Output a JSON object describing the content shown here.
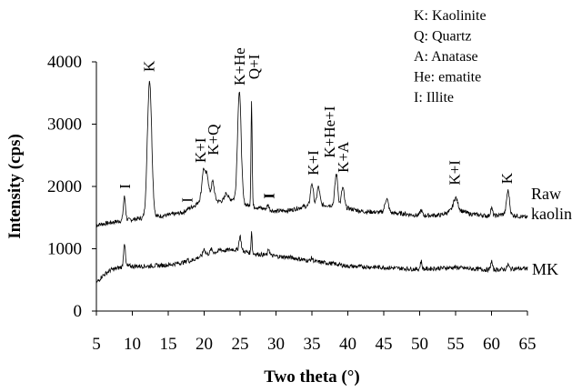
{
  "chart_data": {
    "type": "line",
    "title": "",
    "xlabel": "Two theta (°)",
    "ylabel": "Intensity (cps)",
    "xlim": [
      5,
      65
    ],
    "ylim": [
      0,
      4000
    ],
    "x_ticks": [
      5,
      10,
      15,
      20,
      25,
      30,
      35,
      40,
      45,
      50,
      55,
      60,
      65
    ],
    "y_ticks": [
      0,
      1000,
      2000,
      3000,
      4000
    ],
    "grid": false,
    "legend": {
      "placement": "top-right",
      "entries": [
        "K: Kaolinite",
        "Q: Quartz",
        "A: Anatase",
        "He: ematite",
        "I: Illite"
      ]
    },
    "series": [
      {
        "name": "Raw kaolin",
        "label_lines": [
          "Raw",
          "kaolin"
        ],
        "baseline": [
          [
            5,
            1380
          ],
          [
            8,
            1440
          ],
          [
            10,
            1470
          ],
          [
            12,
            1500
          ],
          [
            15,
            1540
          ],
          [
            17,
            1580
          ],
          [
            19,
            1720
          ],
          [
            20,
            1900
          ],
          [
            22,
            1760
          ],
          [
            24,
            1800
          ],
          [
            26,
            1700
          ],
          [
            28,
            1650
          ],
          [
            30,
            1600
          ],
          [
            32,
            1620
          ],
          [
            34,
            1680
          ],
          [
            36,
            1700
          ],
          [
            38,
            1700
          ],
          [
            40,
            1650
          ],
          [
            42,
            1600
          ],
          [
            45,
            1580
          ],
          [
            48,
            1560
          ],
          [
            50,
            1530
          ],
          [
            53,
            1540
          ],
          [
            55,
            1640
          ],
          [
            57,
            1560
          ],
          [
            60,
            1520
          ],
          [
            62,
            1560
          ],
          [
            65,
            1500
          ]
        ],
        "peaks": [
          [
            8.9,
            1830,
            0.15
          ],
          [
            12.4,
            3700,
            0.3
          ],
          [
            17.7,
            1640,
            0.15
          ],
          [
            19.9,
            2270,
            0.2
          ],
          [
            20.4,
            2200,
            0.2
          ],
          [
            21.2,
            2080,
            0.2
          ],
          [
            23.1,
            1900,
            0.2
          ],
          [
            24.9,
            3530,
            0.25
          ],
          [
            26.6,
            3400,
            0.08
          ],
          [
            28.9,
            1700,
            0.15
          ],
          [
            35.0,
            2050,
            0.2
          ],
          [
            35.9,
            1990,
            0.2
          ],
          [
            38.4,
            2200,
            0.2
          ],
          [
            39.3,
            1980,
            0.2
          ],
          [
            45.4,
            1800,
            0.25
          ],
          [
            50.2,
            1620,
            0.15
          ],
          [
            55.0,
            1820,
            0.3
          ],
          [
            60.0,
            1650,
            0.15
          ],
          [
            62.3,
            1930,
            0.2
          ]
        ]
      },
      {
        "name": "MK",
        "label_lines": [
          "MK"
        ],
        "baseline": [
          [
            5,
            450
          ],
          [
            5.8,
            560
          ],
          [
            7,
            660
          ],
          [
            9,
            720
          ],
          [
            12,
            720
          ],
          [
            15,
            740
          ],
          [
            18,
            800
          ],
          [
            20,
            900
          ],
          [
            22,
            960
          ],
          [
            24,
            990
          ],
          [
            25,
            970
          ],
          [
            27,
            920
          ],
          [
            30,
            880
          ],
          [
            32,
            860
          ],
          [
            35,
            800
          ],
          [
            38,
            760
          ],
          [
            40,
            720
          ],
          [
            45,
            700
          ],
          [
            48,
            680
          ],
          [
            50,
            670
          ],
          [
            53,
            690
          ],
          [
            55,
            700
          ],
          [
            57,
            680
          ],
          [
            60,
            660
          ],
          [
            63,
            680
          ],
          [
            65,
            680
          ]
        ],
        "peaks": [
          [
            8.9,
            1100,
            0.12
          ],
          [
            17.7,
            830,
            0.12
          ],
          [
            20.0,
            1000,
            0.15
          ],
          [
            21.0,
            990,
            0.15
          ],
          [
            22.3,
            990,
            0.15
          ],
          [
            25.0,
            1200,
            0.15
          ],
          [
            26.6,
            1300,
            0.07
          ],
          [
            29.0,
            1000,
            0.12
          ],
          [
            35.0,
            850,
            0.15
          ],
          [
            50.2,
            800,
            0.12
          ],
          [
            60.0,
            800,
            0.12
          ],
          [
            62.3,
            750,
            0.12
          ]
        ]
      }
    ],
    "annotations": [
      {
        "text": "I",
        "x": 8.9,
        "y": 1960,
        "bold": false
      },
      {
        "text": "K",
        "x": 12.3,
        "y": 3840,
        "bold": false
      },
      {
        "text": "I",
        "x": 17.6,
        "y": 1740,
        "bold": false
      },
      {
        "text": "K+I",
        "x": 19.4,
        "y": 2380,
        "bold": false
      },
      {
        "text": "K+Q",
        "x": 21.2,
        "y": 2500,
        "bold": false
      },
      {
        "text": "K+He",
        "x": 24.9,
        "y": 3620,
        "bold": false
      },
      {
        "text": "Q+I",
        "x": 26.9,
        "y": 3720,
        "bold": false
      },
      {
        "text": "I",
        "x": 29.0,
        "y": 1800,
        "bold": true
      },
      {
        "text": "K+I",
        "x": 35.1,
        "y": 2180,
        "bold": false
      },
      {
        "text": "K+He+I",
        "x": 37.4,
        "y": 2460,
        "bold": false
      },
      {
        "text": "K+A",
        "x": 39.3,
        "y": 2220,
        "bold": false
      },
      {
        "text": "K+I",
        "x": 54.8,
        "y": 2020,
        "bold": false
      },
      {
        "text": "K",
        "x": 62.1,
        "y": 2040,
        "bold": false
      }
    ]
  }
}
